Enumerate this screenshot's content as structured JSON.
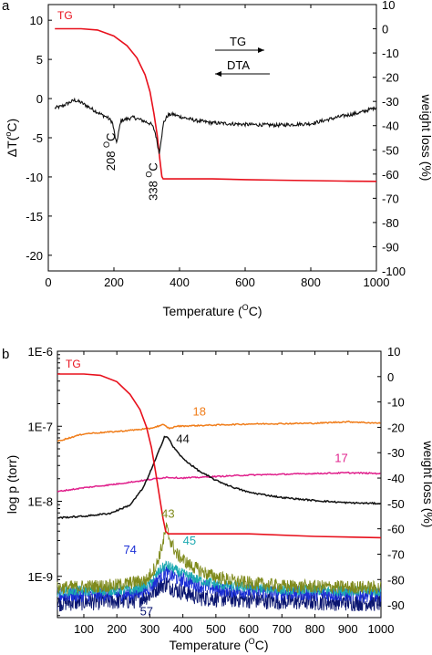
{
  "chart_data": [
    {
      "panel_label": "a",
      "type": "line",
      "xlabel": "Temperature",
      "xunit": "oC",
      "xunit_display": "O",
      "xunit_suffix": "C",
      "xunit_wrap": [
        "(",
        ")"
      ],
      "ylabel_left": "ΔT(",
      "ylabel_left_sup": "o",
      "ylabel_left_end": "C)",
      "ylabel_right": "weight loss (%)",
      "xlim": [
        0,
        1000
      ],
      "ylim_left": [
        -22,
        12
      ],
      "ylim_right": [
        -100,
        10
      ],
      "xticks": [
        0,
        200,
        400,
        600,
        800,
        1000
      ],
      "yticks_left": [
        10,
        5,
        0,
        -5,
        -10,
        -15,
        -20
      ],
      "yticks_right": [
        10,
        0,
        -10,
        -20,
        -30,
        -40,
        -50,
        -60,
        -70,
        -80,
        -90,
        -100
      ],
      "annotations": [
        {
          "text": "208 ",
          "sup": "O",
          "tail": "C",
          "x": 208,
          "y": -3.2
        },
        {
          "text": "338 ",
          "sup": "O",
          "tail": "C",
          "x": 338,
          "y": -7.0
        }
      ],
      "legend_arrows": [
        {
          "label": "TG",
          "direction": "right"
        },
        {
          "label": "DTA",
          "direction": "left"
        }
      ],
      "series": [
        {
          "name": "TG",
          "axis": "right",
          "color": "#e8101c",
          "x": [
            20,
            100,
            150,
            200,
            240,
            270,
            295,
            310,
            322,
            332,
            340,
            346,
            350,
            360,
            400,
            500,
            600,
            700,
            800,
            900,
            1000
          ],
          "y": [
            0,
            0,
            -0.5,
            -3,
            -7,
            -12,
            -19,
            -26,
            -35,
            -44,
            -54,
            -61,
            -62,
            -62,
            -62,
            -62,
            -62.3,
            -62.5,
            -62.7,
            -62.9,
            -63
          ]
        },
        {
          "name": "DTA",
          "axis": "left",
          "color": "#111111",
          "x": [
            20,
            40,
            60,
            80,
            100,
            120,
            140,
            160,
            180,
            195,
            202,
            208,
            214,
            222,
            240,
            260,
            280,
            300,
            315,
            325,
            332,
            338,
            344,
            352,
            365,
            380,
            400,
            450,
            500,
            600,
            700,
            800,
            850,
            900,
            950,
            1000
          ],
          "y": [
            -1.2,
            -1.0,
            -0.6,
            -0.2,
            -0.5,
            -1.0,
            -1.5,
            -2.0,
            -2.4,
            -3.0,
            -4.5,
            -5.8,
            -4.3,
            -2.8,
            -2.6,
            -2.4,
            -2.7,
            -3.0,
            -3.3,
            -4.2,
            -5.6,
            -7.0,
            -5.2,
            -3.0,
            -2.1,
            -2.0,
            -2.3,
            -2.8,
            -3.1,
            -3.3,
            -3.4,
            -3.2,
            -2.7,
            -2.2,
            -1.8,
            -1.1
          ]
        }
      ]
    },
    {
      "panel_label": "b",
      "type": "line",
      "xlabel": "Temperature",
      "xunit_display": "O",
      "xunit_suffix": "C",
      "xunit_wrap": [
        "(",
        ")"
      ],
      "ylabel_left": "log p (torr)",
      "ylabel_right": "weight loss (%)",
      "log_y_left": true,
      "xlim": [
        20,
        1000
      ],
      "ylim_left_log10": [
        -9.55,
        -6
      ],
      "ylim_right": [
        -95,
        10
      ],
      "xticks": [
        100,
        200,
        300,
        400,
        500,
        600,
        700,
        800,
        900,
        1000
      ],
      "yticks_left": [
        "1E-6",
        "1E-7",
        "1E-8",
        "1E-9"
      ],
      "yticks_left_log10": [
        -6,
        -7,
        -8,
        -9
      ],
      "yticks_right": [
        10,
        0,
        -10,
        -20,
        -30,
        -40,
        -50,
        -60,
        -70,
        -80,
        -90
      ],
      "series": [
        {
          "name": "TG",
          "axis": "right",
          "color": "#e8101c",
          "x": [
            20,
            100,
            150,
            200,
            240,
            270,
            290,
            305,
            318,
            330,
            340,
            348,
            355,
            380,
            450,
            600,
            800,
            1000
          ],
          "y": [
            1,
            1,
            0.5,
            -2,
            -7,
            -13,
            -20,
            -28,
            -38,
            -48,
            -56,
            -61,
            -62,
            -62,
            -62,
            -62,
            -63,
            -63.5
          ]
        },
        {
          "name": "18",
          "axis": "left",
          "color": "#f07d1a",
          "x": [
            20,
            100,
            200,
            300,
            340,
            360,
            380,
            450,
            600,
            800,
            900,
            1000
          ],
          "y": [
            -7.2,
            -7.1,
            -7.07,
            -7.03,
            -6.98,
            -7.03,
            -7.0,
            -6.99,
            -6.97,
            -6.96,
            -6.94,
            -6.96
          ]
        },
        {
          "name": "17",
          "axis": "left",
          "color": "#e0208c",
          "x": [
            20,
            100,
            200,
            300,
            350,
            400,
            500,
            600,
            700,
            800,
            900,
            1000
          ],
          "y": [
            -7.87,
            -7.82,
            -7.77,
            -7.71,
            -7.68,
            -7.69,
            -7.67,
            -7.65,
            -7.64,
            -7.63,
            -7.62,
            -7.63
          ]
        },
        {
          "name": "44",
          "axis": "left",
          "color": "#111111",
          "x": [
            20,
            100,
            180,
            240,
            280,
            310,
            330,
            345,
            355,
            370,
            400,
            450,
            500,
            550,
            600,
            700,
            800,
            900,
            1000
          ],
          "y": [
            -8.22,
            -8.2,
            -8.16,
            -8.05,
            -7.82,
            -7.52,
            -7.3,
            -7.13,
            -7.15,
            -7.27,
            -7.43,
            -7.6,
            -7.72,
            -7.81,
            -7.88,
            -7.95,
            -7.99,
            -8.02,
            -8.03
          ]
        },
        {
          "name": "43",
          "axis": "left",
          "color": "#7f8a1c",
          "x": [
            20,
            200,
            290,
            320,
            340,
            350,
            360,
            380,
            420,
            480,
            560,
            700,
            1000
          ],
          "y": [
            -9.15,
            -9.12,
            -9.05,
            -8.85,
            -8.55,
            -8.35,
            -8.5,
            -8.7,
            -8.85,
            -8.98,
            -9.07,
            -9.13,
            -9.15
          ]
        },
        {
          "name": "45",
          "axis": "left",
          "color": "#1ba9b1",
          "x": [
            20,
            250,
            300,
            330,
            350,
            370,
            400,
            450,
            520,
            700,
            1000
          ],
          "y": [
            -9.2,
            -9.18,
            -9.1,
            -8.92,
            -8.85,
            -8.9,
            -8.97,
            -9.05,
            -9.12,
            -9.18,
            -9.2
          ]
        },
        {
          "name": "74",
          "axis": "left",
          "color": "#1b2fd6",
          "x": [
            20,
            250,
            300,
            330,
            350,
            370,
            400,
            450,
            520,
            700,
            1000
          ],
          "y": [
            -9.25,
            -9.23,
            -9.15,
            -9.0,
            -8.95,
            -9.0,
            -9.05,
            -9.12,
            -9.18,
            -9.22,
            -9.25
          ]
        },
        {
          "name": "57",
          "axis": "left",
          "color": "#0a1570",
          "x": [
            20,
            250,
            300,
            330,
            350,
            380,
            450,
            700,
            1000
          ],
          "y": [
            -9.35,
            -9.32,
            -9.25,
            -9.12,
            -9.1,
            -9.18,
            -9.28,
            -9.33,
            -9.35
          ]
        }
      ],
      "series_labels": [
        {
          "text": "TG",
          "color": "#e8101c"
        },
        {
          "text": "18",
          "color": "#f07d1a",
          "x": 450,
          "y": -6.86
        },
        {
          "text": "44",
          "color": "#111111",
          "x": 400,
          "y": -7.22
        },
        {
          "text": "17",
          "color": "#e0208c",
          "x": 880,
          "y": -7.48
        },
        {
          "text": "43",
          "color": "#7f8a1c",
          "x": 355,
          "y": -8.22
        },
        {
          "text": "45",
          "color": "#1ba9b1",
          "x": 420,
          "y": -8.58
        },
        {
          "text": "74",
          "color": "#1b2fd6",
          "x": 240,
          "y": -8.7
        },
        {
          "text": "57",
          "color": "#0a1570",
          "x": 290,
          "y": -9.52
        }
      ]
    }
  ]
}
